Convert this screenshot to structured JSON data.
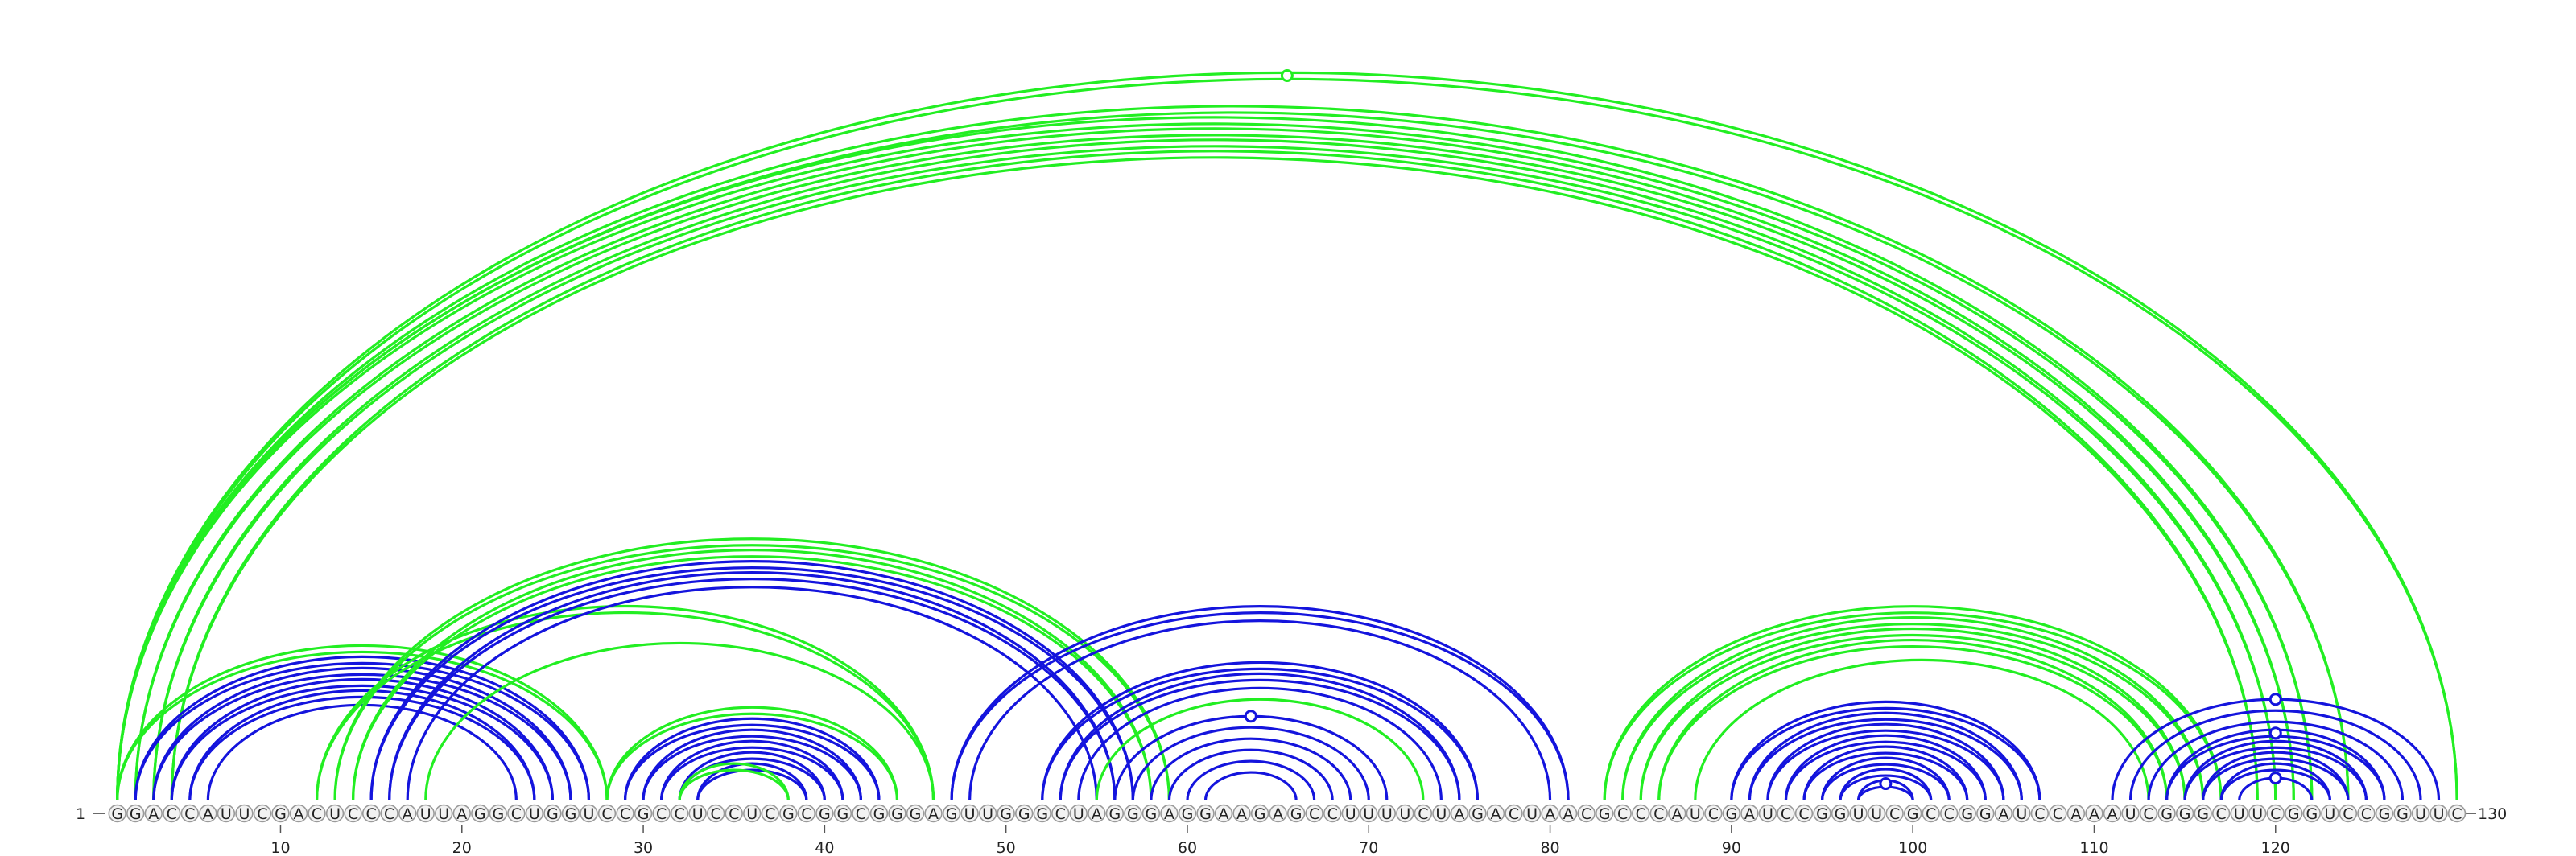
{
  "sequence": "GGACCAUUCGACUCCCAUUAGGCUGGUCCGCCUCCUCGCGGCGGGAGUUGGGCUAGGGAGGAAGAGCCUUUUCUAGACUAACGCCCAUCGAUCCGGUUCGCCGGAUCCAAAUCGGGCUUCGGUCCGGUUC",
  "start_label": "1",
  "end_label": "130",
  "ticks": [
    10,
    20,
    30,
    40,
    50,
    60,
    70,
    80,
    90,
    100,
    110,
    120
  ],
  "colors": {
    "green": "#22ee22",
    "blue": "#1414dd"
  },
  "arcs": [
    {
      "i": 1,
      "j": 130,
      "color": "green",
      "double": true
    },
    {
      "i": 1,
      "j": 124,
      "color": "green",
      "double": true
    },
    {
      "i": 1,
      "j": 122,
      "color": "green",
      "double": true
    },
    {
      "i": 2,
      "j": 121,
      "color": "green",
      "double": true
    },
    {
      "i": 3,
      "j": 120,
      "color": "green",
      "double": true
    },
    {
      "i": 4,
      "j": 119,
      "color": "green",
      "double": true
    },
    {
      "i": 1,
      "j": 28,
      "color": "green",
      "double": true
    },
    {
      "i": 2,
      "j": 27,
      "color": "blue",
      "double": true
    },
    {
      "i": 3,
      "j": 26,
      "color": "blue",
      "double": true
    },
    {
      "i": 4,
      "j": 25,
      "color": "blue",
      "double": true
    },
    {
      "i": 5,
      "j": 24,
      "color": "blue",
      "double": true
    },
    {
      "i": 6,
      "j": 23,
      "color": "blue",
      "double": false
    },
    {
      "i": 12,
      "j": 46,
      "color": "green",
      "double": true
    },
    {
      "i": 13,
      "j": 59,
      "color": "green",
      "double": true
    },
    {
      "i": 14,
      "j": 58,
      "color": "green",
      "double": true
    },
    {
      "i": 15,
      "j": 57,
      "color": "blue",
      "double": true
    },
    {
      "i": 16,
      "j": 56,
      "color": "blue",
      "double": true
    },
    {
      "i": 17,
      "j": 55,
      "color": "blue",
      "double": false
    },
    {
      "i": 18,
      "j": 46,
      "color": "green",
      "double": false
    },
    {
      "i": 28,
      "j": 44,
      "color": "green",
      "double": true
    },
    {
      "i": 29,
      "j": 43,
      "color": "blue",
      "double": true
    },
    {
      "i": 30,
      "j": 42,
      "color": "blue",
      "double": true
    },
    {
      "i": 31,
      "j": 41,
      "color": "blue",
      "double": true
    },
    {
      "i": 32,
      "j": 40,
      "color": "blue",
      "double": true
    },
    {
      "i": 33,
      "j": 39,
      "color": "blue",
      "double": true
    },
    {
      "i": 32,
      "j": 38,
      "color": "green",
      "double": true
    },
    {
      "i": 47,
      "j": 81,
      "color": "blue",
      "double": true
    },
    {
      "i": 48,
      "j": 80,
      "color": "blue",
      "double": false
    },
    {
      "i": 52,
      "j": 76,
      "color": "blue",
      "double": true
    },
    {
      "i": 53,
      "j": 75,
      "color": "blue",
      "double": true
    },
    {
      "i": 54,
      "j": 74,
      "color": "blue",
      "double": false
    },
    {
      "i": 55,
      "j": 73,
      "color": "green",
      "double": false
    },
    {
      "i": 56,
      "j": 71,
      "color": "blue",
      "double": false
    },
    {
      "i": 57,
      "j": 70,
      "color": "blue",
      "double": false
    },
    {
      "i": 58,
      "j": 69,
      "color": "blue",
      "double": false
    },
    {
      "i": 59,
      "j": 68,
      "color": "blue",
      "double": false
    },
    {
      "i": 60,
      "j": 67,
      "color": "blue",
      "double": false
    },
    {
      "i": 61,
      "j": 66,
      "color": "blue",
      "double": false
    },
    {
      "i": 83,
      "j": 117,
      "color": "green",
      "double": true
    },
    {
      "i": 84,
      "j": 116,
      "color": "green",
      "double": true
    },
    {
      "i": 85,
      "j": 115,
      "color": "green",
      "double": true
    },
    {
      "i": 86,
      "j": 114,
      "color": "green",
      "double": true
    },
    {
      "i": 88,
      "j": 113,
      "color": "green",
      "double": false
    },
    {
      "i": 90,
      "j": 107,
      "color": "blue",
      "double": true
    },
    {
      "i": 91,
      "j": 106,
      "color": "blue",
      "double": true
    },
    {
      "i": 92,
      "j": 105,
      "color": "blue",
      "double": true
    },
    {
      "i": 93,
      "j": 104,
      "color": "blue",
      "double": true
    },
    {
      "i": 94,
      "j": 103,
      "color": "blue",
      "double": true
    },
    {
      "i": 95,
      "j": 102,
      "color": "blue",
      "double": true
    },
    {
      "i": 96,
      "j": 101,
      "color": "blue",
      "double": true
    },
    {
      "i": 97,
      "j": 100,
      "color": "blue",
      "double": true
    },
    {
      "i": 111,
      "j": 129,
      "color": "blue",
      "double": false
    },
    {
      "i": 112,
      "j": 128,
      "color": "blue",
      "double": false
    },
    {
      "i": 113,
      "j": 127,
      "color": "blue",
      "double": false
    },
    {
      "i": 114,
      "j": 126,
      "color": "blue",
      "double": true
    },
    {
      "i": 115,
      "j": 125,
      "color": "blue",
      "double": true
    },
    {
      "i": 116,
      "j": 124,
      "color": "blue",
      "double": true
    },
    {
      "i": 117,
      "j": 123,
      "color": "blue",
      "double": true
    },
    {
      "i": 118,
      "j": 122,
      "color": "blue",
      "double": false
    }
  ],
  "markers": [
    {
      "i": 1,
      "j": 130,
      "color": "green"
    },
    {
      "i": 56,
      "j": 71,
      "color": "blue"
    },
    {
      "i": 111,
      "j": 129,
      "color": "blue"
    },
    {
      "i": 114,
      "j": 126,
      "color": "blue"
    },
    {
      "i": 118,
      "j": 122,
      "color": "blue"
    },
    {
      "i": 97,
      "j": 100,
      "color": "blue"
    }
  ]
}
